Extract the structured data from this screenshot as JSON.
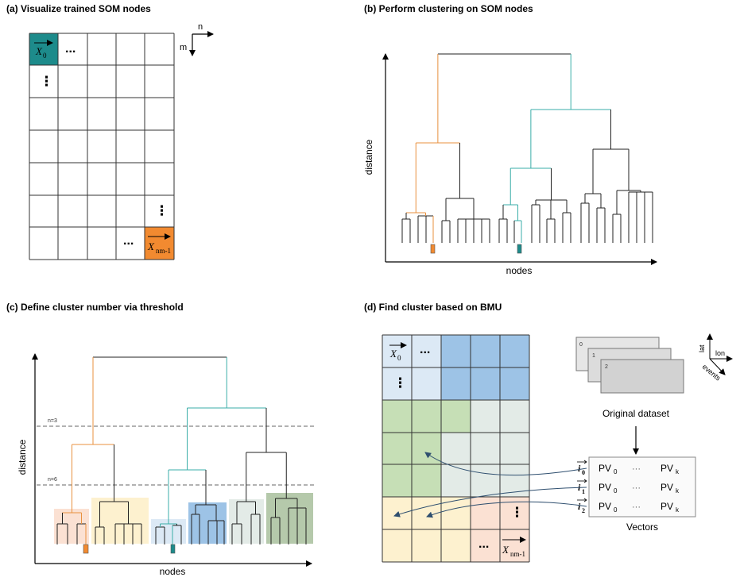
{
  "colors": {
    "teal": "#1d8b8b",
    "orange": "#f28a30",
    "grid_line": "#222222",
    "c_orange": "#fbe1d3",
    "c_yellow": "#fdf1cf",
    "c_lightblue": "#dce9f5",
    "c_blue": "#9dc3e6",
    "c_grey": "#e3ebe7",
    "c_green": "#c6dfb6",
    "c_darkgreen": "#b5c9ab"
  },
  "panel_a": {
    "title": "(a) Visualize trained SOM nodes",
    "axis_n": "n",
    "axis_m": "m",
    "first_node": "X",
    "first_node_sub": "0",
    "last_node": "X",
    "last_node_sub": "nm-1",
    "ellipsis": "...",
    "vdots": "⋮"
  },
  "panel_b": {
    "title": "(b) Perform clustering on SOM nodes",
    "ylabel": "distance",
    "xlabel": "nodes"
  },
  "panel_c": {
    "title": "(c) Define cluster number via threshold",
    "ylabel": "distance",
    "xlabel": "nodes",
    "threshold_1": "n=3",
    "threshold_2": "n=6"
  },
  "panel_d": {
    "title": "(d) Find cluster based on BMU",
    "first_node": "X",
    "first_node_sub": "0",
    "last_node": "X",
    "last_node_sub": "nm-1",
    "ellipsis": "...",
    "vdots": "⋮",
    "dataset_label": "Original dataset",
    "stack_labels": [
      "0",
      "1",
      "2"
    ],
    "axis_lat": "lat",
    "axis_lon": "lon",
    "axis_events": "events",
    "vectors_label": "Vectors",
    "vector_rows": [
      {
        "i": "i",
        "sub": "0",
        "pv0": "PV",
        "pv0_sub": "0",
        "dots": "···",
        "pvk": "PV",
        "pvk_sub": "k"
      },
      {
        "i": "i",
        "sub": "1",
        "pv0": "PV",
        "pv0_sub": "0",
        "dots": "···",
        "pvk": "PV",
        "pvk_sub": "k"
      },
      {
        "i": "i",
        "sub": "2",
        "pv0": "PV",
        "pv0_sub": "0",
        "dots": "···",
        "pvk": "PV",
        "pvk_sub": "k"
      }
    ]
  }
}
